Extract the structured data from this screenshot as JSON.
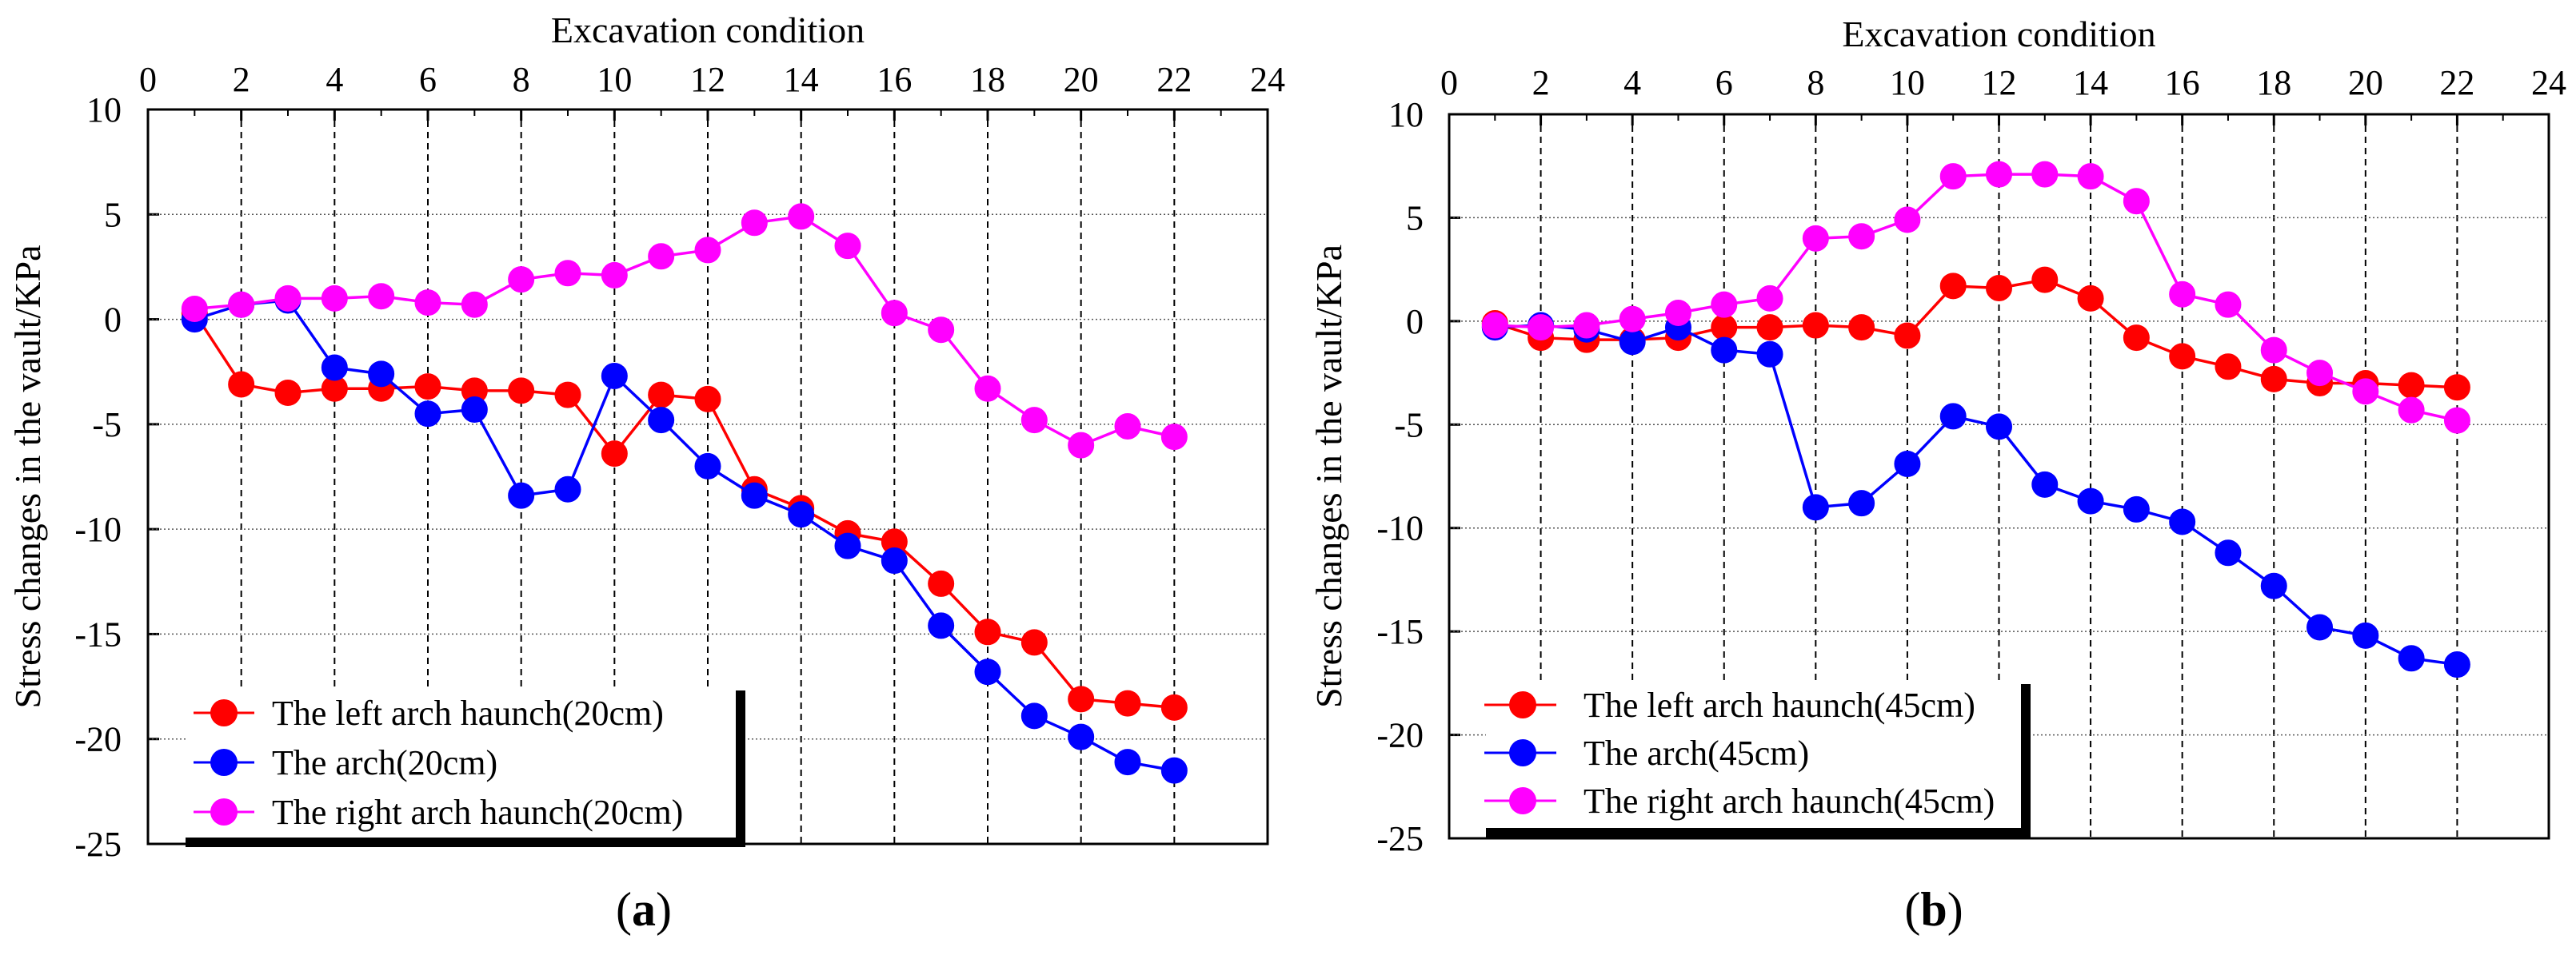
{
  "figure": {
    "colors": {
      "red": "#ff0000",
      "blue": "#0000ff",
      "magenta": "#ff00ff",
      "axis": "#000000",
      "grid": "#000000"
    }
  },
  "chart_data": [
    {
      "type": "line",
      "panel_label": {
        "open": "(",
        "letter": "a",
        "close": ")"
      },
      "xlabel": "Excavation condition",
      "xlabel_position": "top",
      "ylabel": "Stress changes in the vault/KPa",
      "xlim": [
        0,
        24
      ],
      "ylim": [
        -25,
        10
      ],
      "xticks": [
        "0",
        "2",
        "4",
        "6",
        "8",
        "10",
        "12",
        "14",
        "16",
        "18",
        "20",
        "22",
        "24"
      ],
      "yticks": [
        "10",
        "5",
        "0",
        "-5",
        "-10",
        "-15",
        "-20",
        "-25"
      ],
      "grid": true,
      "legend_position": "bottom-left",
      "x": [
        1,
        2,
        3,
        4,
        5,
        6,
        7,
        8,
        9,
        10,
        11,
        12,
        13,
        14,
        15,
        16,
        17,
        18,
        19,
        20,
        21,
        22
      ],
      "series": [
        {
          "name": "The left arch haunch(20cm)",
          "color": "#ff0000",
          "values": [
            0.3,
            -3.1,
            -3.5,
            -3.3,
            -3.3,
            -3.2,
            -3.4,
            -3.4,
            -3.6,
            -6.4,
            -3.6,
            -3.8,
            -8.1,
            -9.0,
            -10.2,
            -10.6,
            -12.6,
            -14.9,
            -15.4,
            -18.1,
            -18.3,
            -18.5
          ]
        },
        {
          "name": "The arch(20cm)",
          "color": "#0000ff",
          "values": [
            0.0,
            0.7,
            0.9,
            -2.3,
            -2.6,
            -4.5,
            -4.3,
            -8.4,
            -8.1,
            -2.7,
            -4.8,
            -7.0,
            -8.4,
            -9.3,
            -10.8,
            -11.5,
            -14.6,
            -16.8,
            -18.9,
            -19.9,
            -21.1,
            -21.5
          ]
        },
        {
          "name": "The right arch haunch(20cm)",
          "color": "#ff00ff",
          "values": [
            0.5,
            0.7,
            1.0,
            1.0,
            1.1,
            0.8,
            0.7,
            1.9,
            2.2,
            2.1,
            3.0,
            3.3,
            4.6,
            4.9,
            3.5,
            0.3,
            -0.5,
            -3.3,
            -4.8,
            -6.0,
            -5.1,
            -5.6
          ]
        }
      ]
    },
    {
      "type": "line",
      "panel_label": {
        "open": "(",
        "letter": "b",
        "close": ")"
      },
      "xlabel": "Excavation condition",
      "xlabel_position": "top",
      "ylabel": "Stress changes in the vault/KPa",
      "xlim": [
        0,
        24
      ],
      "ylim": [
        -25,
        10
      ],
      "xticks": [
        "0",
        "2",
        "4",
        "6",
        "8",
        "10",
        "12",
        "14",
        "16",
        "18",
        "20",
        "22",
        "24"
      ],
      "yticks": [
        "10",
        "5",
        "0",
        "-5",
        "-10",
        "-15",
        "-20",
        "-25"
      ],
      "grid": true,
      "legend_position": "bottom-left",
      "x": [
        1,
        2,
        3,
        4,
        5,
        6,
        7,
        8,
        9,
        10,
        11,
        12,
        13,
        14,
        15,
        16,
        17,
        18,
        19,
        20,
        21,
        22
      ],
      "series": [
        {
          "name": "The left arch haunch(45cm)",
          "color": "#ff0000",
          "values": [
            -0.1,
            -0.8,
            -0.9,
            -0.9,
            -0.8,
            -0.3,
            -0.3,
            -0.2,
            -0.3,
            -0.7,
            1.7,
            1.6,
            2.0,
            1.1,
            -0.8,
            -1.7,
            -2.2,
            -2.8,
            -3.0,
            -3.0,
            -3.1,
            -3.2
          ]
        },
        {
          "name": "The arch(45cm)",
          "color": "#0000ff",
          "values": [
            -0.3,
            -0.2,
            -0.4,
            -1.0,
            -0.3,
            -1.4,
            -1.6,
            -9.0,
            -8.8,
            -6.9,
            -4.6,
            -5.1,
            -7.9,
            -8.7,
            -9.1,
            -9.7,
            -11.2,
            -12.8,
            -14.8,
            -15.2,
            -16.3,
            -16.6
          ]
        },
        {
          "name": "The right arch haunch(45cm)",
          "color": "#ff00ff",
          "values": [
            -0.2,
            -0.3,
            -0.2,
            0.1,
            0.4,
            0.8,
            1.1,
            4.0,
            4.1,
            4.9,
            7.0,
            7.1,
            7.1,
            7.0,
            5.8,
            1.3,
            0.8,
            -1.4,
            -2.5,
            -3.4,
            -4.3,
            -4.8
          ]
        }
      ]
    }
  ]
}
